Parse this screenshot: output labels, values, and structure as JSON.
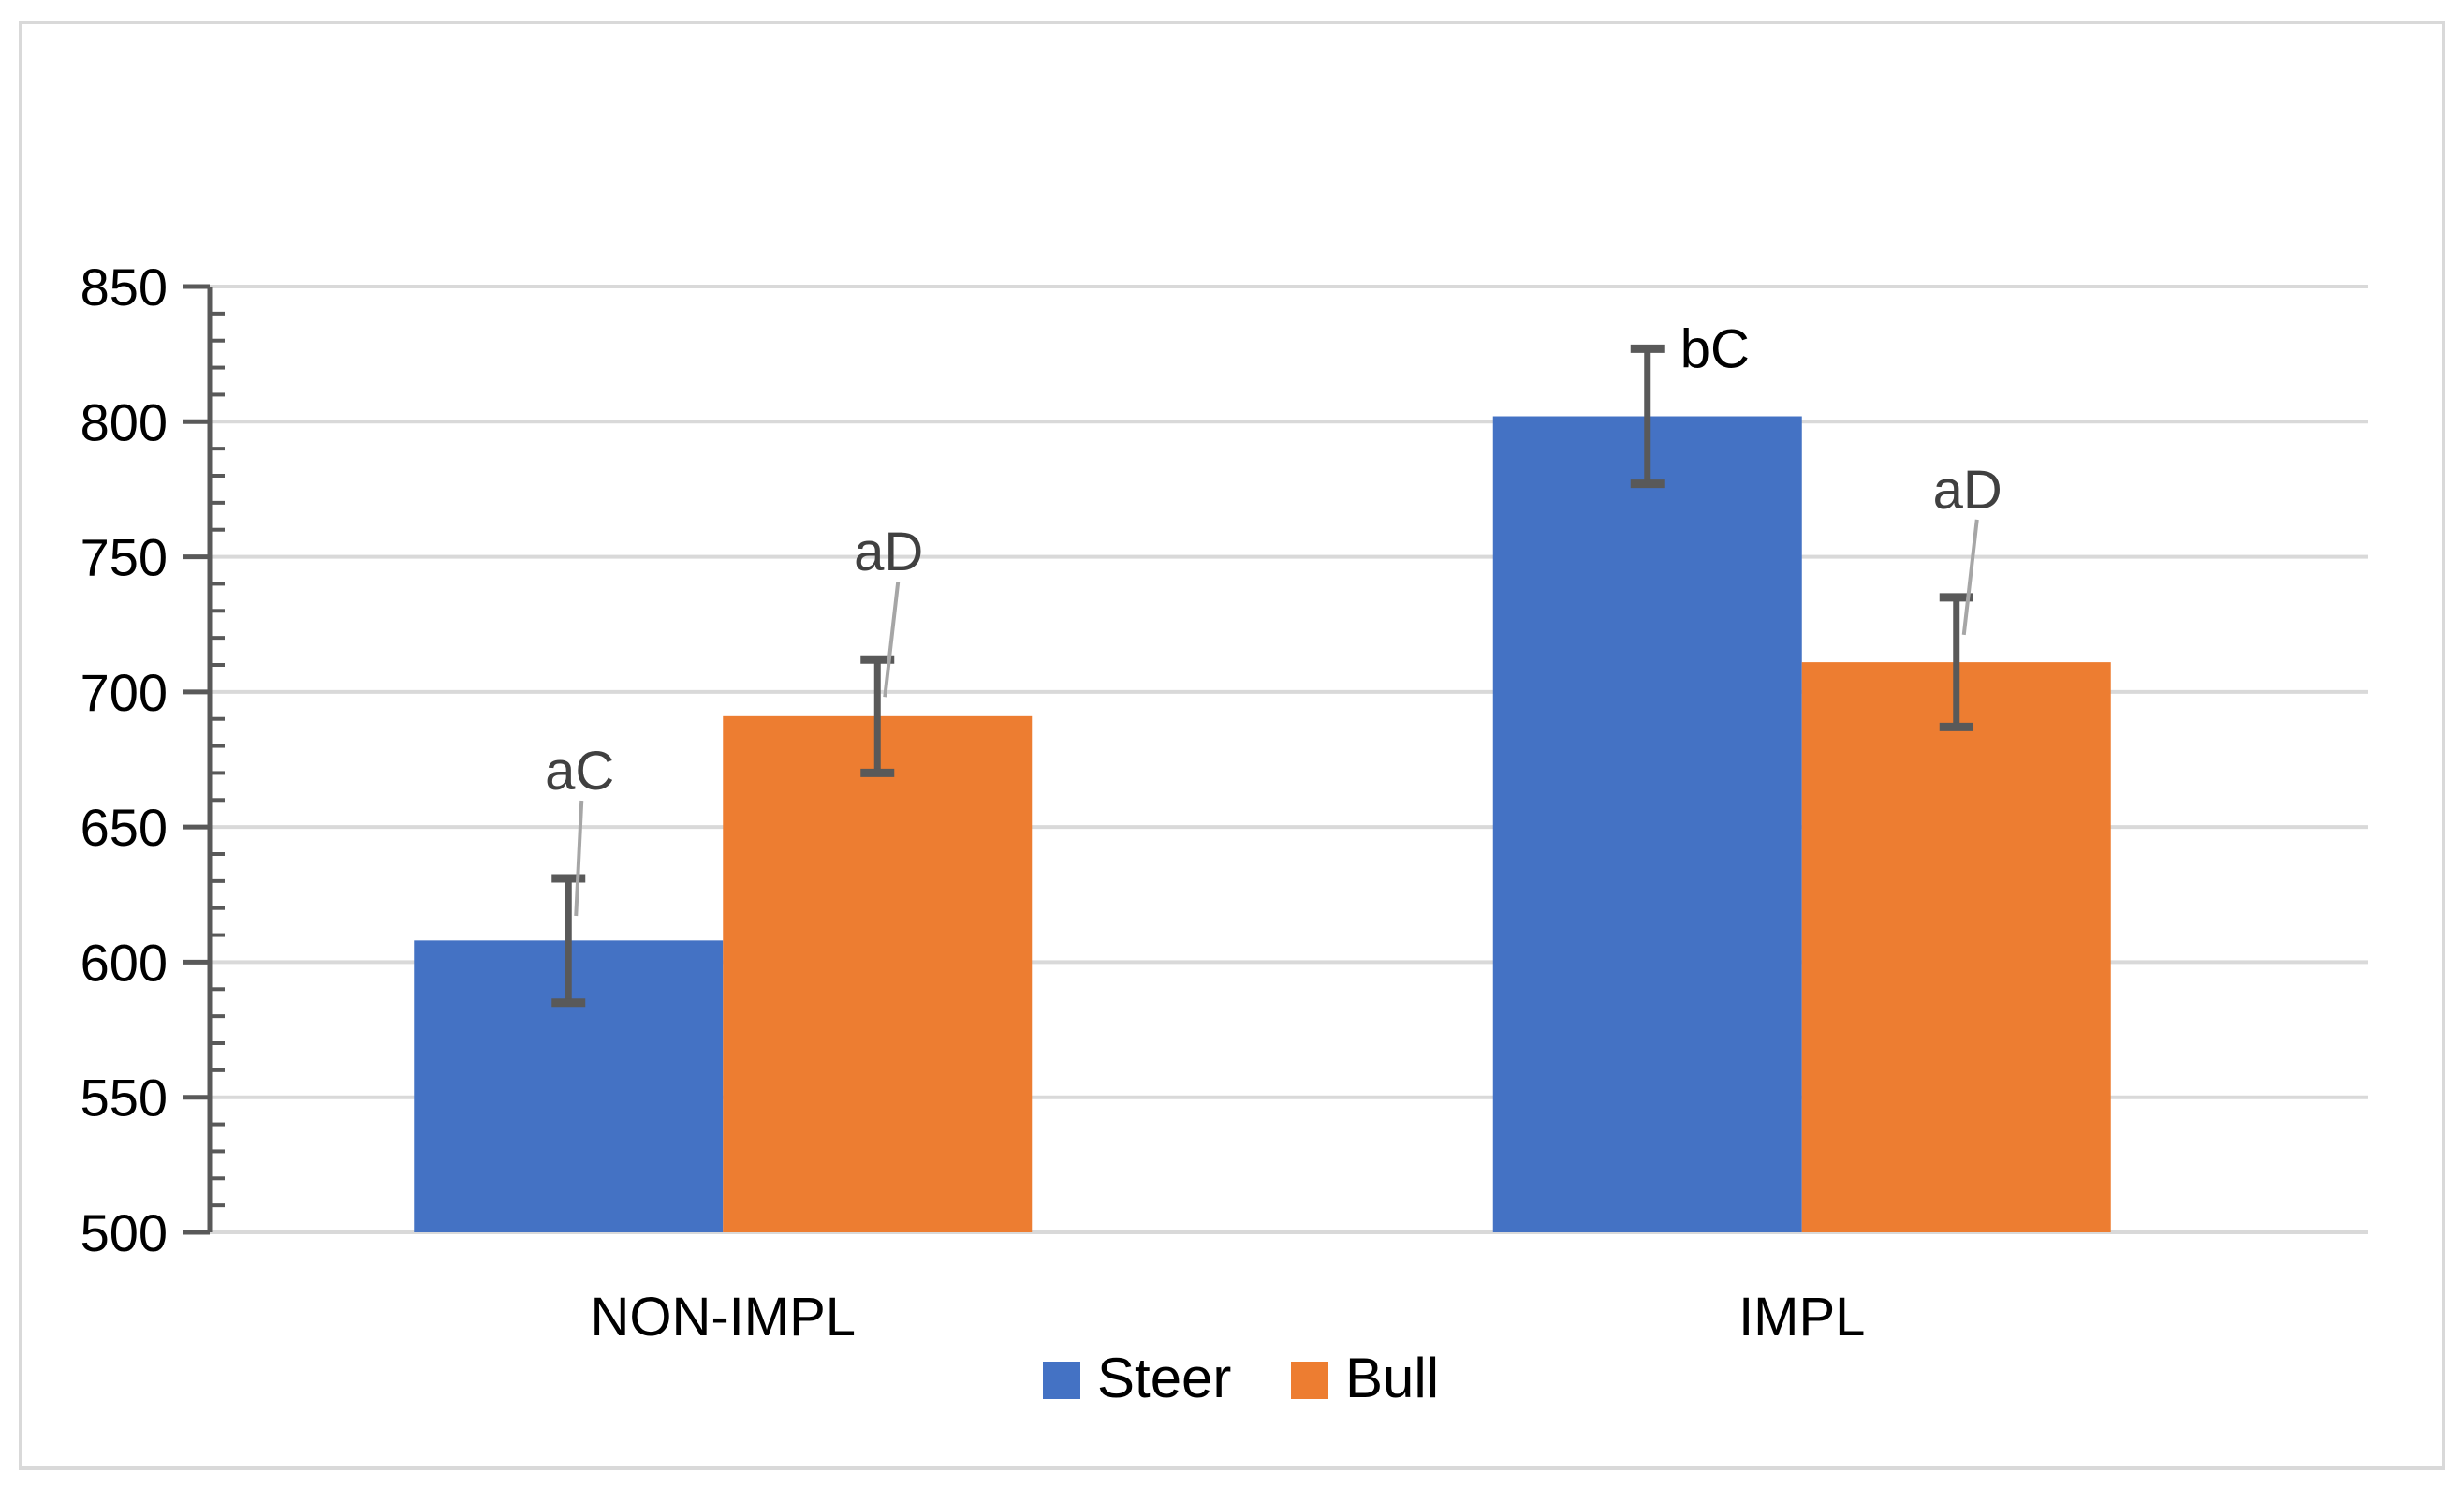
{
  "chart_data": {
    "type": "bar",
    "title": "",
    "xlabel": "",
    "ylabel": "",
    "categories": [
      "NON-IMPL",
      "IMPL"
    ],
    "ylim": [
      500,
      850
    ],
    "yticks": [
      500,
      550,
      600,
      650,
      700,
      750,
      800,
      850
    ],
    "minor_tick_step": 10,
    "grid": true,
    "legend_position": "bottom-center",
    "series": [
      {
        "name": "Steer",
        "color": "#4472c4",
        "values": [
          608,
          802
        ],
        "errors": [
          23,
          25
        ],
        "labels": [
          "aC",
          "bC"
        ]
      },
      {
        "name": "Bull",
        "color": "#ed7d31",
        "values": [
          691,
          711
        ],
        "errors": [
          21,
          24
        ],
        "labels": [
          "aD",
          "aD"
        ]
      }
    ],
    "colors": {
      "grid": "#d9d9d9",
      "axis": "#595959",
      "error_bar": "#595959",
      "label_leader": "#a6a6a6",
      "label_text_dark": "#000000",
      "label_text_light": "#404040"
    }
  }
}
